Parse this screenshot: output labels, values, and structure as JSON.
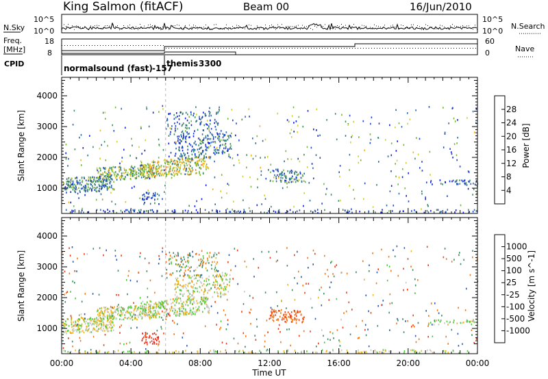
{
  "header": {
    "station": "King Salmon (fitACF)",
    "beam": "Beam 00",
    "date": "16/Jun/2010"
  },
  "top_panels": {
    "nsky_label": "N.Sky",
    "nsearch_label": "N.Search",
    "nsky_ticks": [
      "10^5",
      "10^0"
    ],
    "freq_label_1": "Freq.",
    "freq_label_2": "[MHz]",
    "freq_ticks": [
      "18",
      "8"
    ],
    "nave_label": "Nave",
    "nave_ticks": [
      "60",
      "0"
    ],
    "cpid_label": "CPID",
    "cpid_names": [
      "normalsound (fast)",
      "-157",
      "themis",
      "3300"
    ]
  },
  "x_axis": {
    "label": "Time UT",
    "ticks": [
      "00:00",
      "04:00",
      "08:00",
      "12:00",
      "16:00",
      "20:00",
      "00:00"
    ]
  },
  "y_axis": {
    "label": "Slant Range [km]",
    "ticks": [
      "1000",
      "2000",
      "3000",
      "4000"
    ]
  },
  "colorbars": {
    "power_label": "Power [dB]",
    "power_ticks": [
      "4",
      "8",
      "12",
      "16",
      "20",
      "24",
      "28"
    ],
    "power_colors": [
      "#0a1ee6",
      "#1e46c8",
      "#2e6aa0",
      "#3c8c64",
      "#78b43c",
      "#d2d22a",
      "#f0b41e",
      "#f57814",
      "#f0320f",
      "#e60a0a"
    ],
    "velocity_label": "Velocity [m s^-1]",
    "velocity_ticks": [
      "1000",
      "500",
      "100",
      "25",
      "-25",
      "-100",
      "-500",
      "-1000"
    ],
    "velocity_colors": [
      "#1e32c8",
      "#2e5ab4",
      "#3c8c64",
      "#50c83c",
      "#c8c8c8",
      "#c8c8c8",
      "#f0b41e",
      "#f57814",
      "#f03c14",
      "#e60a0a"
    ]
  },
  "chart_data": [
    {
      "type": "heatmap",
      "name": "power",
      "x_range_hours": [
        0,
        24
      ],
      "y_range_km": [
        180,
        4600
      ],
      "color_range_db": [
        0,
        32
      ],
      "regions": [
        {
          "t0": 0.0,
          "t1": 3.0,
          "r0": 850,
          "r1": 1350,
          "slope": 100,
          "value": 10,
          "density": 0.85
        },
        {
          "t0": 2.0,
          "t1": 5.5,
          "r0": 1250,
          "r1": 1700,
          "slope": 80,
          "value": 14,
          "density": 0.8
        },
        {
          "t0": 4.5,
          "t1": 8.5,
          "r0": 1350,
          "r1": 1900,
          "slope": 120,
          "value": 18,
          "density": 0.75
        },
        {
          "t0": 6.5,
          "t1": 9.8,
          "r0": 1900,
          "r1": 2700,
          "slope": 150,
          "value": 7,
          "density": 0.45
        },
        {
          "t0": 6.0,
          "t1": 9.0,
          "r0": 2700,
          "r1": 3500,
          "slope": 0,
          "value": 7,
          "density": 0.3
        },
        {
          "t0": 12.0,
          "t1": 14.0,
          "r0": 1250,
          "r1": 1650,
          "slope": -100,
          "value": 9,
          "density": 0.6
        },
        {
          "t0": 21.0,
          "t1": 24.0,
          "r0": 1150,
          "r1": 1300,
          "slope": 0,
          "value": 6,
          "density": 0.5
        },
        {
          "t0": 4.6,
          "t1": 5.6,
          "r0": 500,
          "r1": 900,
          "slope": 0,
          "value": 6,
          "density": 0.5
        },
        {
          "t0": 0.0,
          "t1": 24.0,
          "r0": 180,
          "r1": 330,
          "slope": 0,
          "value": 6,
          "density": 0.35
        }
      ]
    },
    {
      "type": "heatmap",
      "name": "velocity",
      "x_range_hours": [
        0,
        24
      ],
      "y_range_km": [
        180,
        4600
      ],
      "color_range_ms": [
        -1000,
        1000
      ],
      "regions": [
        {
          "t0": 0.0,
          "t1": 3.0,
          "r0": 850,
          "r1": 1350,
          "slope": 100,
          "value": 0,
          "density": 0.85
        },
        {
          "t0": 2.0,
          "t1": 5.5,
          "r0": 1250,
          "r1": 1700,
          "slope": 80,
          "value": 0,
          "density": 0.8
        },
        {
          "t0": 4.5,
          "t1": 8.5,
          "r0": 1350,
          "r1": 1900,
          "slope": 120,
          "value": 0,
          "density": 0.75
        },
        {
          "t0": 6.5,
          "t1": 9.8,
          "r0": 1900,
          "r1": 2700,
          "slope": 150,
          "value": 0,
          "density": 0.45
        },
        {
          "t0": 6.0,
          "t1": 9.0,
          "r0": 2700,
          "r1": 3500,
          "slope": 0,
          "value": 50,
          "density": 0.3
        },
        {
          "t0": 12.0,
          "t1": 14.0,
          "r0": 1250,
          "r1": 1650,
          "slope": -100,
          "value": -450,
          "density": 0.7
        },
        {
          "t0": 21.0,
          "t1": 24.0,
          "r0": 1150,
          "r1": 1300,
          "slope": 0,
          "value": 0,
          "density": 0.5
        },
        {
          "t0": 4.6,
          "t1": 5.6,
          "r0": 500,
          "r1": 900,
          "slope": 0,
          "value": -900,
          "density": 0.6
        },
        {
          "t0": 0.0,
          "t1": 24.0,
          "r0": 180,
          "r1": 330,
          "slope": 0,
          "value": 0,
          "density": 0.35
        }
      ]
    }
  ]
}
